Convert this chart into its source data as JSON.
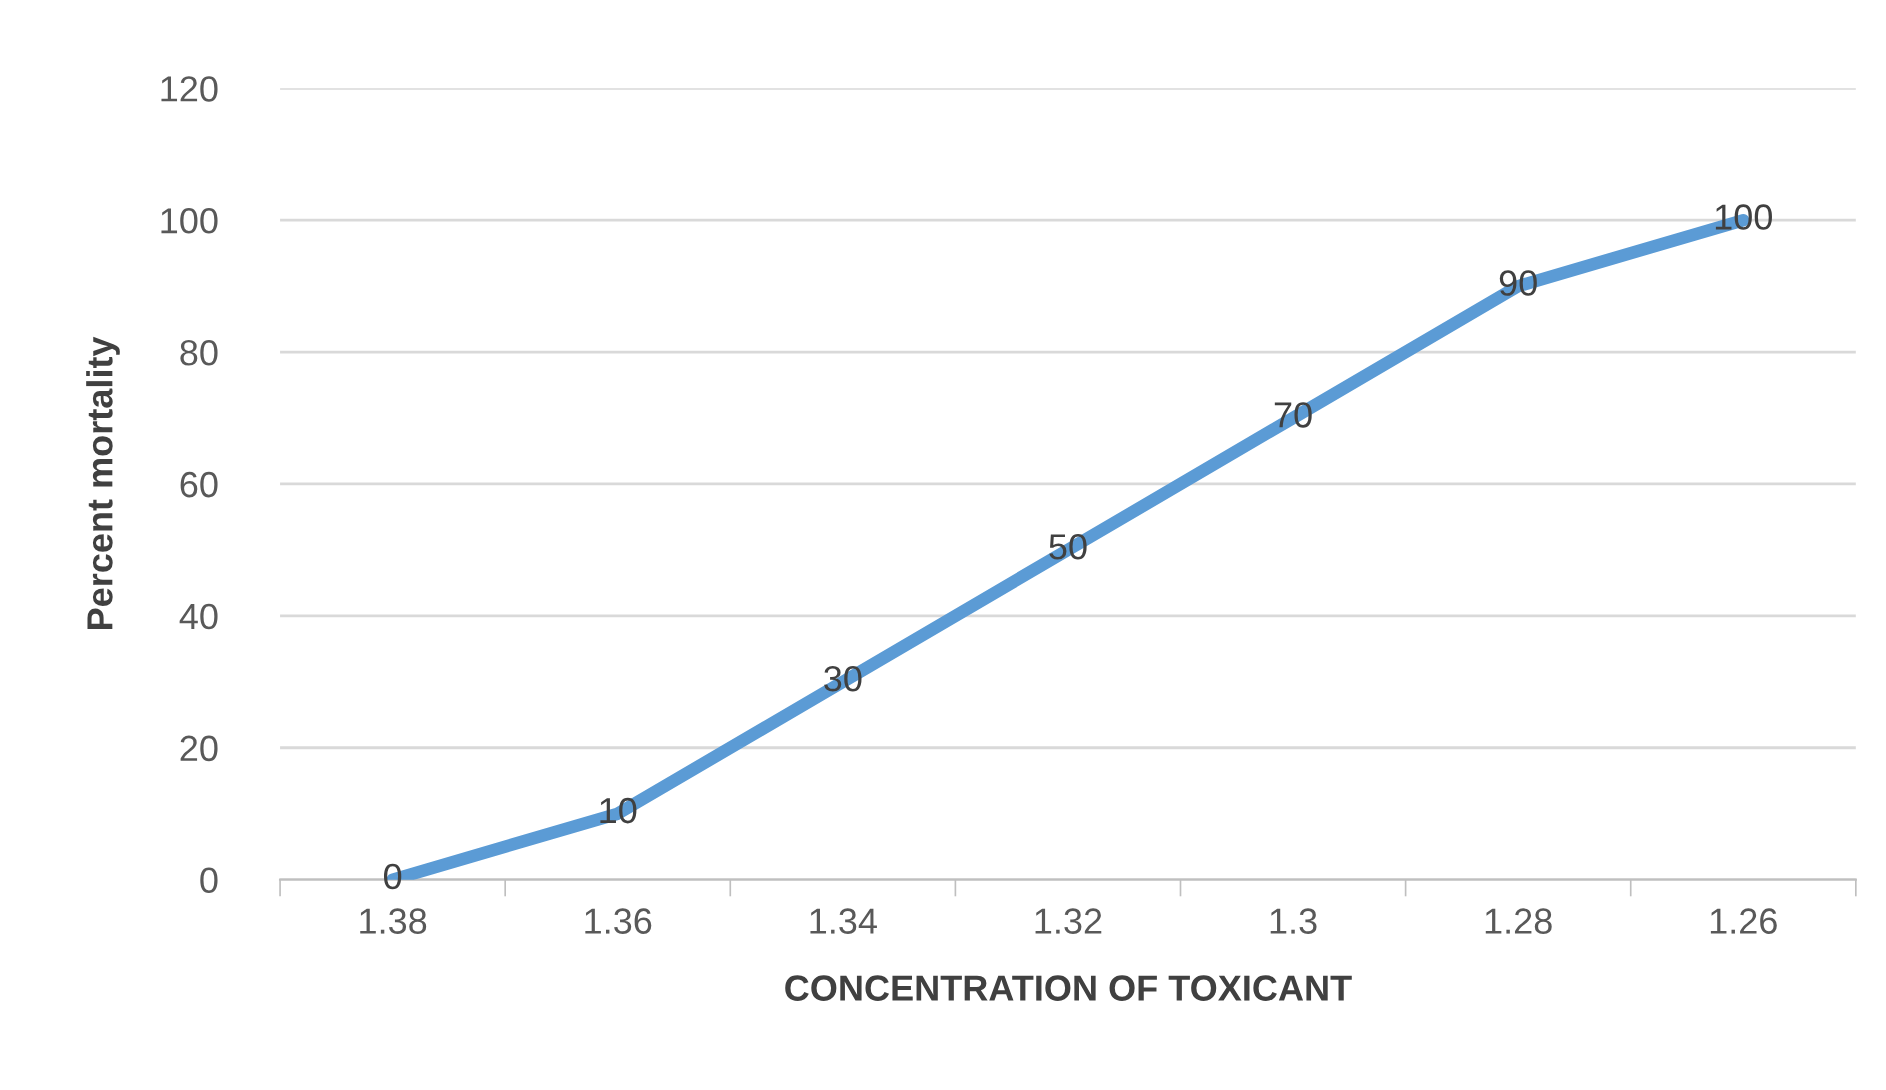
{
  "chart_data": {
    "type": "line",
    "xlabel": "CONCENTRATION OF TOXICANT",
    "ylabel": "Percent mortality",
    "categories": [
      "1.38",
      "1.36",
      "1.34",
      "1.32",
      "1.3",
      "1.28",
      "1.26"
    ],
    "series": [
      {
        "color": "#5b9bd5",
        "values": [
          0,
          10,
          30,
          50,
          70,
          90,
          100
        ]
      }
    ],
    "ylim": [
      0,
      120
    ],
    "yticks": [
      0,
      20,
      40,
      60,
      80,
      100,
      120
    ],
    "grid": "y",
    "data_labels": true,
    "marker": "none",
    "line_style": "solid"
  }
}
